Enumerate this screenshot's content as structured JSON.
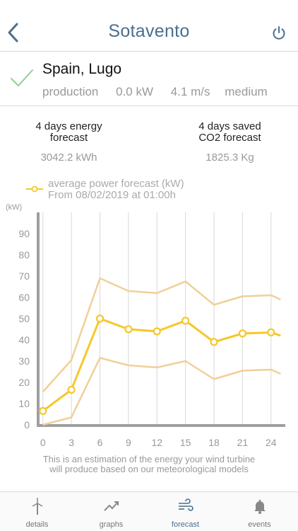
{
  "header": {
    "title": "Sotavento"
  },
  "location": {
    "name": "Spain, Lugo",
    "production_label": "production",
    "power": "0.0 kW",
    "wind_speed": "4.1 m/s",
    "level": "medium"
  },
  "summary": {
    "energy_title_line1": "4 days energy",
    "energy_title_line2": "forecast",
    "energy_value": "3042.2 kWh",
    "co2_title_line1": "4 days saved",
    "co2_title_line2": "CO2 forecast",
    "co2_value": "1825.3 Kg"
  },
  "legend": {
    "line1": "average power forecast (kW)",
    "line2": "From 08/02/2019 at 01:00h"
  },
  "chart_data": {
    "type": "line",
    "ylabel": "(kW)",
    "xlabel": "",
    "x_ticks": [
      "0",
      "3",
      "6",
      "9",
      "12",
      "15",
      "18",
      "21",
      "24"
    ],
    "y_ticks": [
      "0",
      "10",
      "20",
      "30",
      "40",
      "50",
      "60",
      "70",
      "80",
      "90"
    ],
    "ylim": [
      0,
      100
    ],
    "xlim": [
      -0.5,
      25.5
    ],
    "colors": {
      "average": "#f5c82a",
      "band": "#f0d098",
      "axis": "#9e9e9e",
      "grid": "#d8d8d8"
    },
    "series": [
      {
        "role": "upper",
        "x": [
          0,
          3,
          6,
          9,
          12,
          15,
          18,
          21,
          24,
          25
        ],
        "values": [
          15.5,
          30.5,
          69,
          63,
          62,
          67.5,
          56.5,
          60.5,
          61,
          59
        ]
      },
      {
        "role": "average",
        "x": [
          0,
          3,
          6,
          9,
          12,
          15,
          18,
          21,
          24,
          25
        ],
        "values": [
          6.5,
          16.5,
          50,
          45,
          44,
          49,
          39,
          43,
          43.5,
          42
        ]
      },
      {
        "role": "lower",
        "x": [
          0,
          3,
          6,
          9,
          12,
          15,
          18,
          21,
          24,
          25
        ],
        "values": [
          0,
          3.5,
          31.5,
          28,
          27,
          30,
          21.5,
          25.5,
          26,
          24
        ]
      }
    ],
    "marker_points": [
      0,
      3,
      6,
      9,
      12,
      15,
      18,
      21,
      24
    ]
  },
  "caption": {
    "line1": "This is an estimation of the energy your wind turbine",
    "line2": "will produce based on our meteorological models"
  },
  "tabs": [
    {
      "label": "details",
      "icon": "wind-turbine-icon",
      "active": false
    },
    {
      "label": "graphs",
      "icon": "trend-icon",
      "active": false
    },
    {
      "label": "forecast",
      "icon": "wind-icon",
      "active": true
    },
    {
      "label": "events",
      "icon": "bell-icon",
      "active": false
    }
  ]
}
